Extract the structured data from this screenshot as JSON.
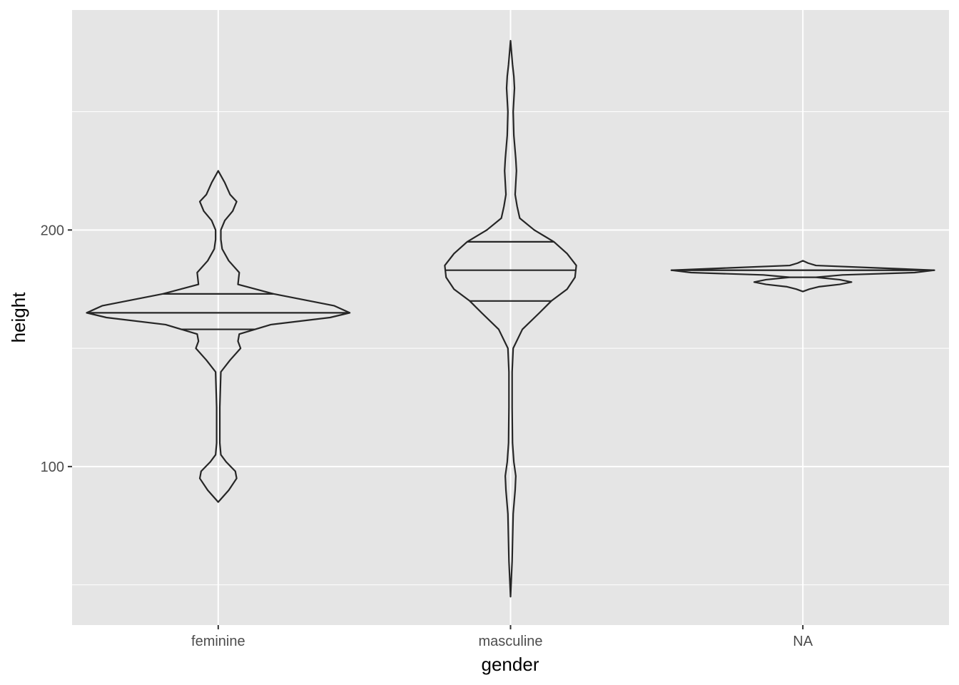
{
  "chart_data": {
    "type": "violin",
    "xlabel": "gender",
    "ylabel": "height",
    "categories": [
      "feminine",
      "masculine",
      "NA"
    ],
    "ylim": [
      33,
      293
    ],
    "y_ticks": [
      100,
      200
    ],
    "y_tick_labels": [
      "100",
      "200"
    ],
    "draw_quantiles": [
      0.25,
      0.5,
      0.75
    ],
    "grid": true,
    "legend": "none",
    "colors": {
      "panel": "#e5e5e5",
      "grid": "#ffffff",
      "outline": "#262626",
      "tick_text": "#4d4d4d",
      "title_text": "#000000"
    },
    "series": [
      {
        "name": "feminine",
        "y_min": 85,
        "y_max": 225,
        "quantiles": {
          "q25": 158,
          "median": 165,
          "q75": 173
        },
        "density_profile": [
          [
            85,
            0.0
          ],
          [
            90,
            0.08
          ],
          [
            95,
            0.14
          ],
          [
            98,
            0.13
          ],
          [
            102,
            0.06
          ],
          [
            105,
            0.02
          ],
          [
            110,
            0.012
          ],
          [
            125,
            0.012
          ],
          [
            140,
            0.02
          ],
          [
            145,
            0.09
          ],
          [
            150,
            0.17
          ],
          [
            153,
            0.15
          ],
          [
            156,
            0.16
          ],
          [
            160,
            0.4
          ],
          [
            163,
            0.85
          ],
          [
            165,
            1.0
          ],
          [
            168,
            0.88
          ],
          [
            173,
            0.42
          ],
          [
            177,
            0.15
          ],
          [
            182,
            0.16
          ],
          [
            187,
            0.08
          ],
          [
            192,
            0.03
          ],
          [
            196,
            0.02
          ],
          [
            200,
            0.02
          ],
          [
            204,
            0.05
          ],
          [
            208,
            0.11
          ],
          [
            212,
            0.14
          ],
          [
            215,
            0.09
          ],
          [
            220,
            0.05
          ],
          [
            225,
            0.0
          ]
        ]
      },
      {
        "name": "masculine",
        "y_min": 45,
        "y_max": 280,
        "quantiles": {
          "q25": 170,
          "median": 183,
          "q75": 195
        },
        "density_profile": [
          [
            45,
            0.0
          ],
          [
            60,
            0.012
          ],
          [
            80,
            0.02
          ],
          [
            90,
            0.035
          ],
          [
            96,
            0.04
          ],
          [
            102,
            0.025
          ],
          [
            110,
            0.015
          ],
          [
            125,
            0.012
          ],
          [
            140,
            0.012
          ],
          [
            150,
            0.02
          ],
          [
            158,
            0.09
          ],
          [
            165,
            0.22
          ],
          [
            170,
            0.31
          ],
          [
            175,
            0.43
          ],
          [
            180,
            0.49
          ],
          [
            185,
            0.5
          ],
          [
            190,
            0.43
          ],
          [
            195,
            0.33
          ],
          [
            200,
            0.18
          ],
          [
            205,
            0.07
          ],
          [
            210,
            0.05
          ],
          [
            215,
            0.035
          ],
          [
            220,
            0.04
          ],
          [
            225,
            0.045
          ],
          [
            230,
            0.04
          ],
          [
            240,
            0.025
          ],
          [
            250,
            0.02
          ],
          [
            260,
            0.03
          ],
          [
            265,
            0.025
          ],
          [
            270,
            0.015
          ],
          [
            280,
            0.0
          ]
        ]
      },
      {
        "name": "NA",
        "y_min": 174,
        "y_max": 187,
        "quantiles": {
          "q25": 180,
          "median": 183,
          "q75": 183
        },
        "density_profile": [
          [
            174,
            0.0
          ],
          [
            175,
            0.05
          ],
          [
            176,
            0.12
          ],
          [
            177,
            0.28
          ],
          [
            178,
            0.37
          ],
          [
            179,
            0.28
          ],
          [
            180,
            0.1
          ],
          [
            181,
            0.3
          ],
          [
            182,
            0.85
          ],
          [
            183,
            1.0
          ],
          [
            184,
            0.55
          ],
          [
            185,
            0.1
          ],
          [
            186,
            0.04
          ],
          [
            187,
            0.0
          ]
        ]
      }
    ]
  }
}
